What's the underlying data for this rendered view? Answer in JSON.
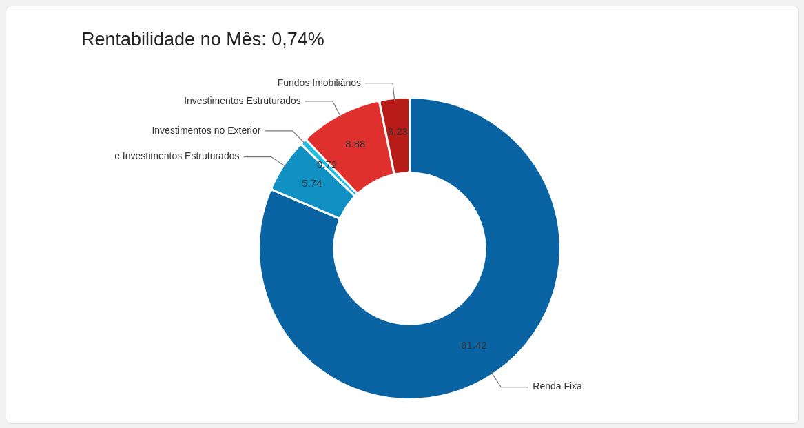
{
  "chart_data": {
    "type": "donut",
    "title": "Rentabilidade no Mês: 0,74%",
    "categories": [
      "Renda Fixa",
      "e Investimentos Estruturados",
      "Investimentos no Exterior",
      "Investimentos Estruturados",
      "Fundos Imobiliários"
    ],
    "values": [
      81.42,
      5.74,
      0.72,
      8.88,
      3.23
    ],
    "colors": [
      "#0a64a4",
      "#1190c4",
      "#22bde3",
      "#e0302e",
      "#b81c18"
    ],
    "data_labels": true,
    "legend": false
  }
}
